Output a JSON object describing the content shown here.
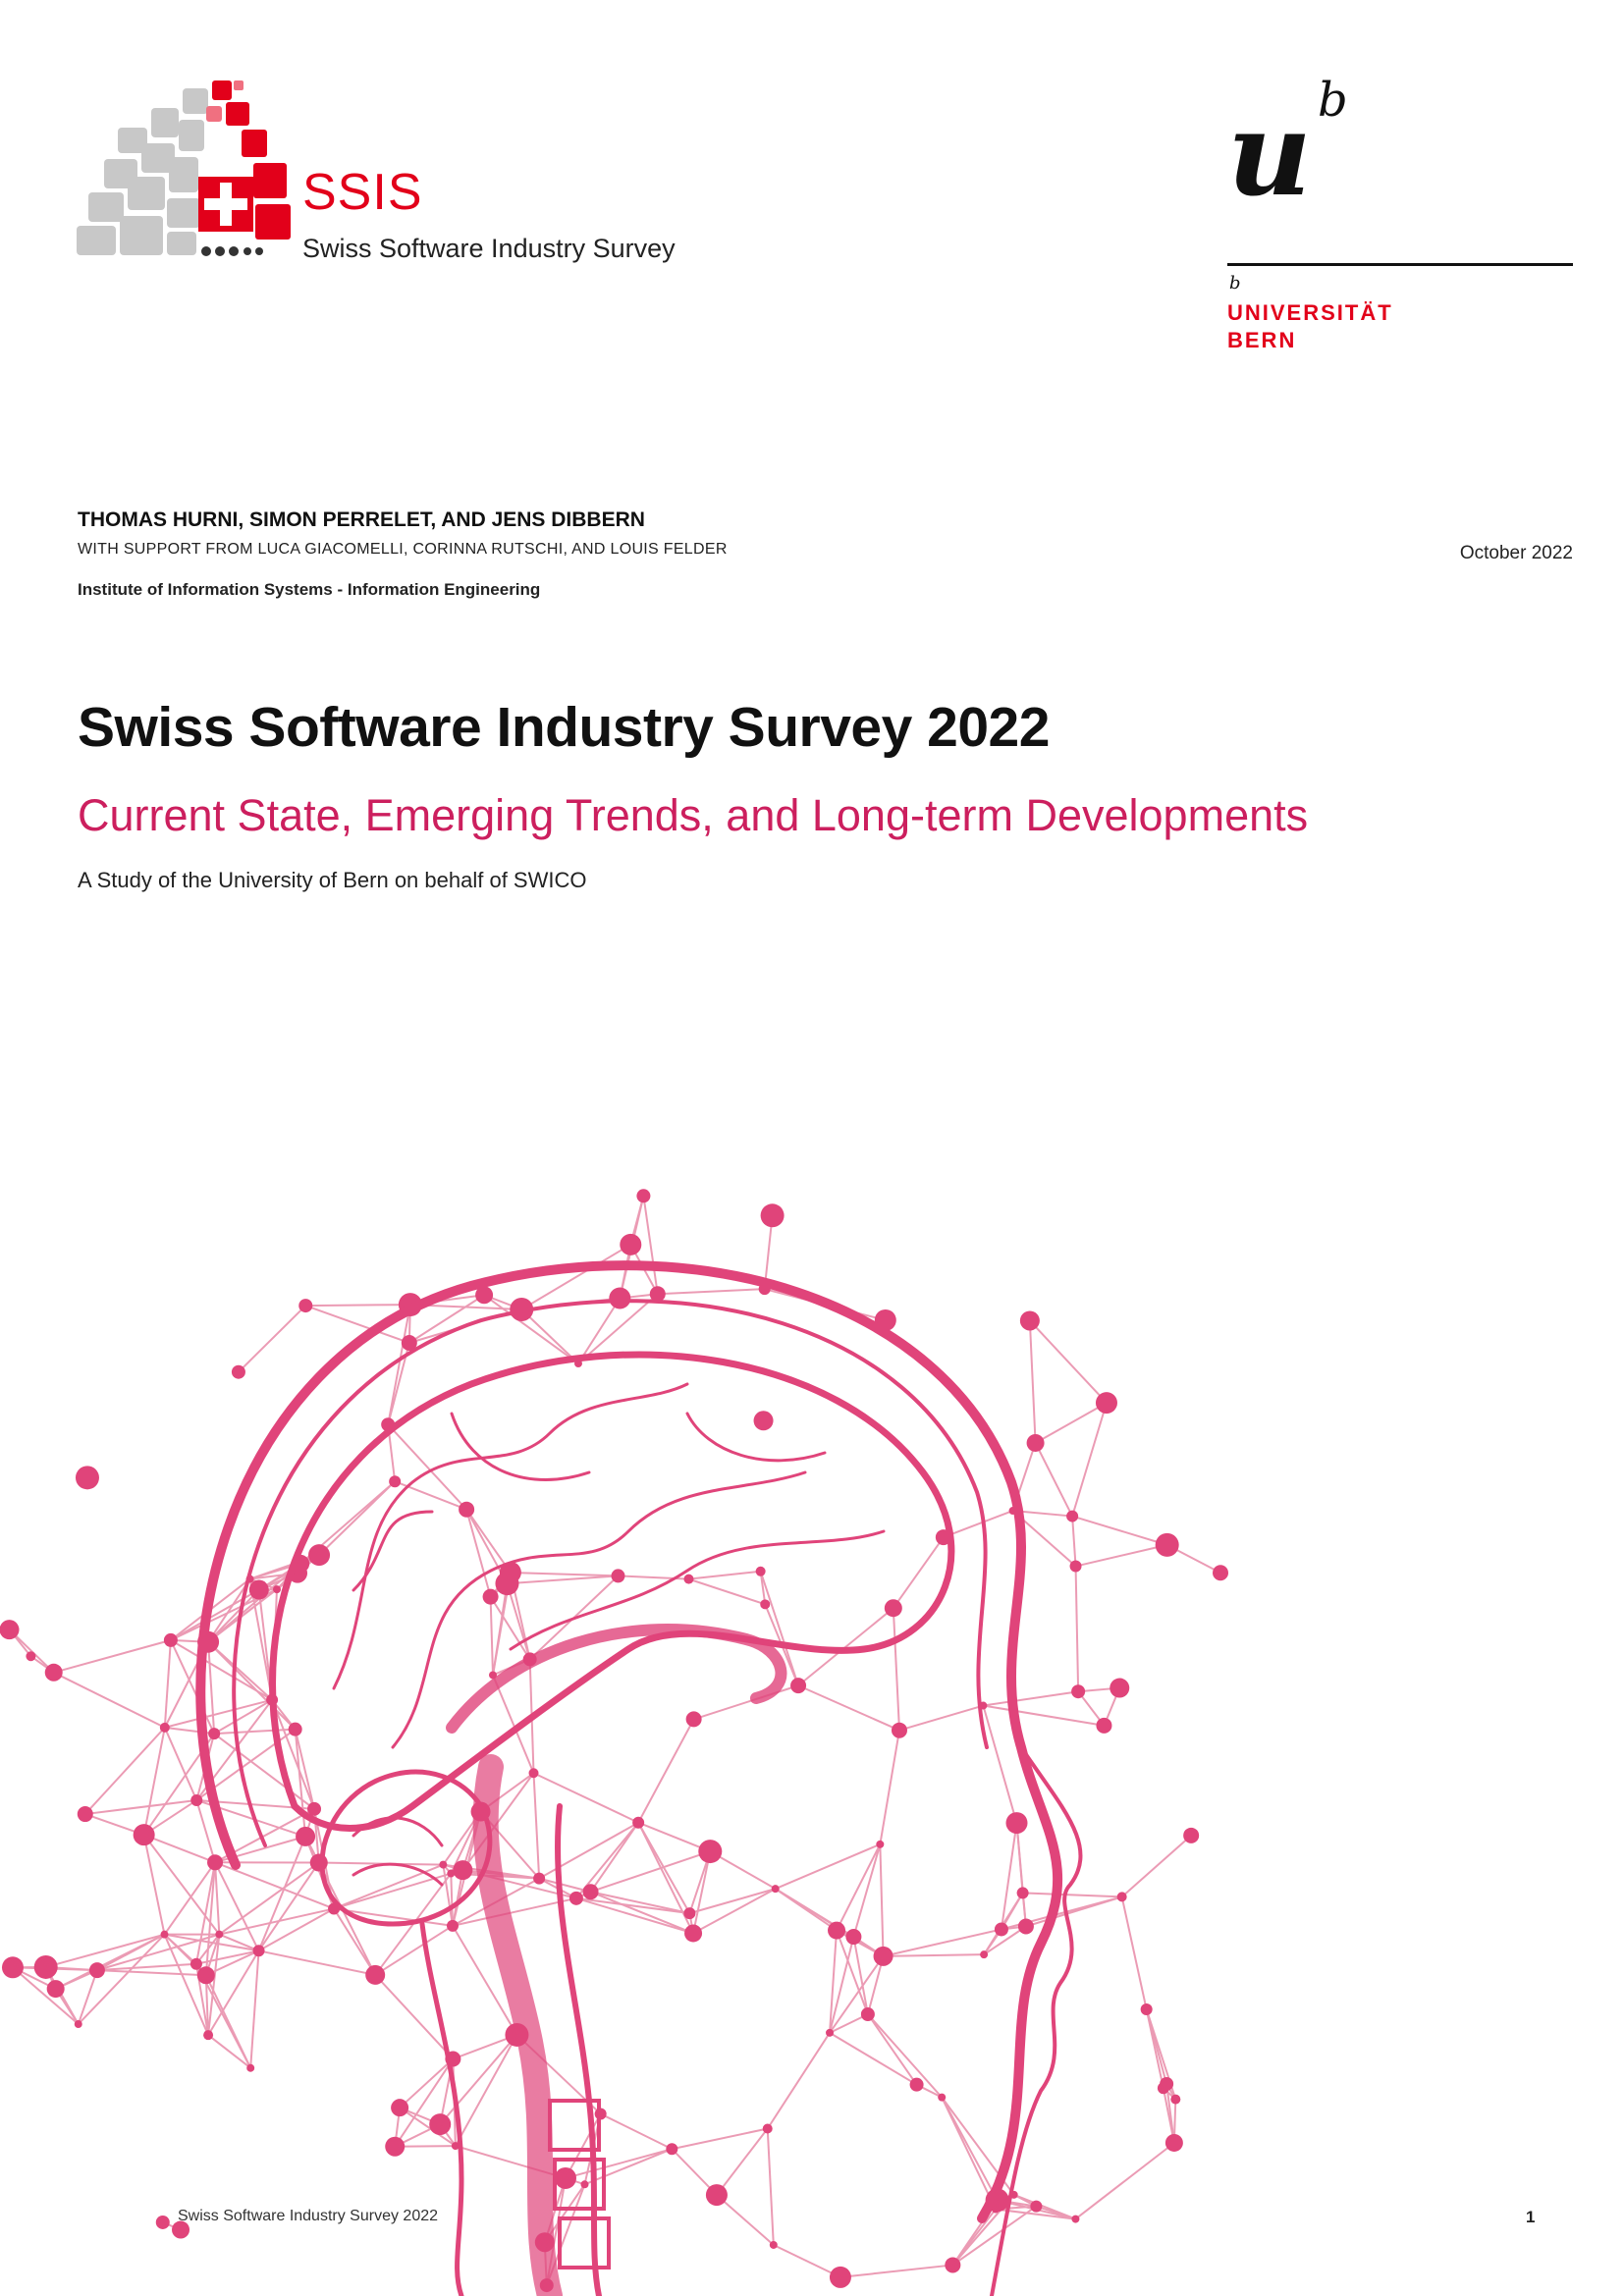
{
  "logos": {
    "ssis_wordmark": "SSIS",
    "ssis_subtitle": "Swiss Software Industry Survey",
    "unibern_glyph_u": "u",
    "unibern_glyph_b": "b",
    "unibern_small_b": "b",
    "unibern_line1": "UNIVERSITÄT",
    "unibern_line2": "BERN",
    "ssis_accent": "#e2001a",
    "unibern_accent": "#e2001a"
  },
  "header": {
    "authors": "THOMAS HURNI, SIMON PERRELET, AND JENS DIBBERN",
    "support": "WITH SUPPORT FROM LUCA GIACOMELLI, CORINNA RUTSCHI, AND LOUIS FELDER",
    "institute": "Institute of Information Systems - Information Engineering",
    "date": "October 2022"
  },
  "main": {
    "title": "Swiss Software Industry Survey 2022",
    "subtitle": "Current State, Emerging Trends, and Long-term Developments",
    "tagline": "A Study of the University of Bern on behalf of SWICO",
    "subtitle_color": "#cc1f5e",
    "illustration_icon": "brain-network-globe-icon",
    "illustration_color": "#e0447a"
  },
  "footer": {
    "running_title": "Swiss Software Industry Survey 2022",
    "page_number": "1"
  }
}
